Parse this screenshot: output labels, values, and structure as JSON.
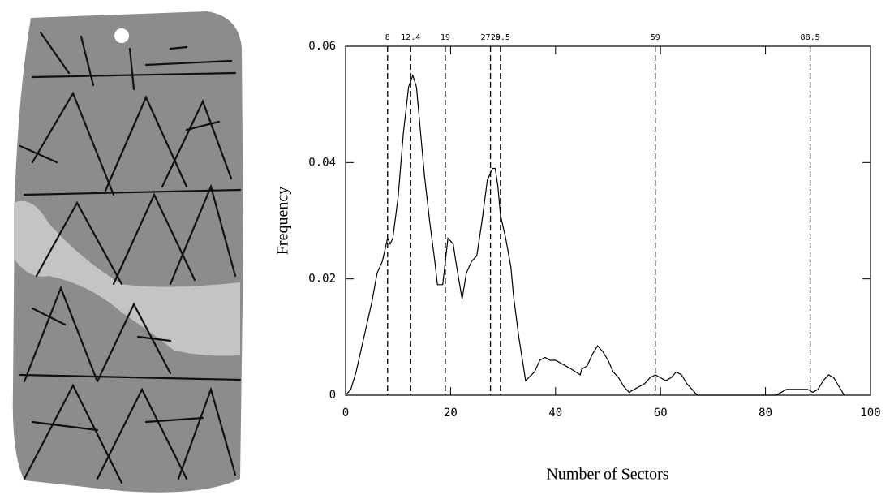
{
  "chart_data": {
    "type": "line",
    "xlabel": "Number of Sectors",
    "ylabel": "Frequency",
    "x": [
      0,
      1,
      2,
      3,
      4,
      5,
      6,
      7,
      8,
      8.5,
      9,
      10,
      11,
      12,
      12.8,
      13.5,
      14,
      15,
      16,
      17,
      17.5,
      18.5,
      19,
      19.5,
      20.5,
      21,
      22.2,
      23,
      24,
      25,
      26,
      27,
      28,
      28.5,
      29,
      29.5,
      30.5,
      31.5,
      32,
      33,
      34.3,
      36,
      37,
      38,
      39,
      40,
      41,
      42,
      43,
      44.7,
      45,
      46,
      47,
      48,
      49,
      50,
      51,
      52,
      53,
      54,
      55,
      56,
      57,
      58,
      59,
      60,
      61,
      62,
      63,
      64,
      65,
      66,
      67,
      82,
      83,
      84,
      85,
      86,
      87,
      88,
      89,
      90,
      91,
      92,
      93,
      94,
      95
    ],
    "series": [
      {
        "name": "Frequency",
        "color": "#000000",
        "values": [
          0,
          0.001,
          0.004,
          0.008,
          0.012,
          0.016,
          0.021,
          0.023,
          0.027,
          0.026,
          0.027,
          0.034,
          0.045,
          0.053,
          0.055,
          0.053,
          0.048,
          0.038,
          0.03,
          0.023,
          0.019,
          0.019,
          0.023,
          0.027,
          0.026,
          0.023,
          0.0165,
          0.021,
          0.023,
          0.024,
          0.03,
          0.037,
          0.039,
          0.039,
          0.036,
          0.031,
          0.027,
          0.022,
          0.017,
          0.01,
          0.0025,
          0.004,
          0.006,
          0.0065,
          0.006,
          0.006,
          0.0055,
          0.005,
          0.0045,
          0.0035,
          0.0045,
          0.005,
          0.007,
          0.0085,
          0.0075,
          0.006,
          0.004,
          0.003,
          0.0015,
          0.0005,
          0.001,
          0.0015,
          0.002,
          0.003,
          0.0035,
          0.003,
          0.0025,
          0.003,
          0.004,
          0.0035,
          0.002,
          0.001,
          0,
          0,
          0.0005,
          0.001,
          0.001,
          0.001,
          0.001,
          0.001,
          0.0005,
          0.001,
          0.0025,
          0.0035,
          0.003,
          0.0015,
          0
        ]
      }
    ],
    "vlines": [
      8,
      12.4,
      19,
      27.6,
      29.5,
      59,
      88.5
    ],
    "xlim": [
      0,
      100
    ],
    "xticks": [
      0,
      20,
      40,
      60,
      80,
      100
    ],
    "ylim": [
      0,
      0.06
    ],
    "yticks": [
      0,
      0.02,
      0.04,
      0.06
    ]
  }
}
